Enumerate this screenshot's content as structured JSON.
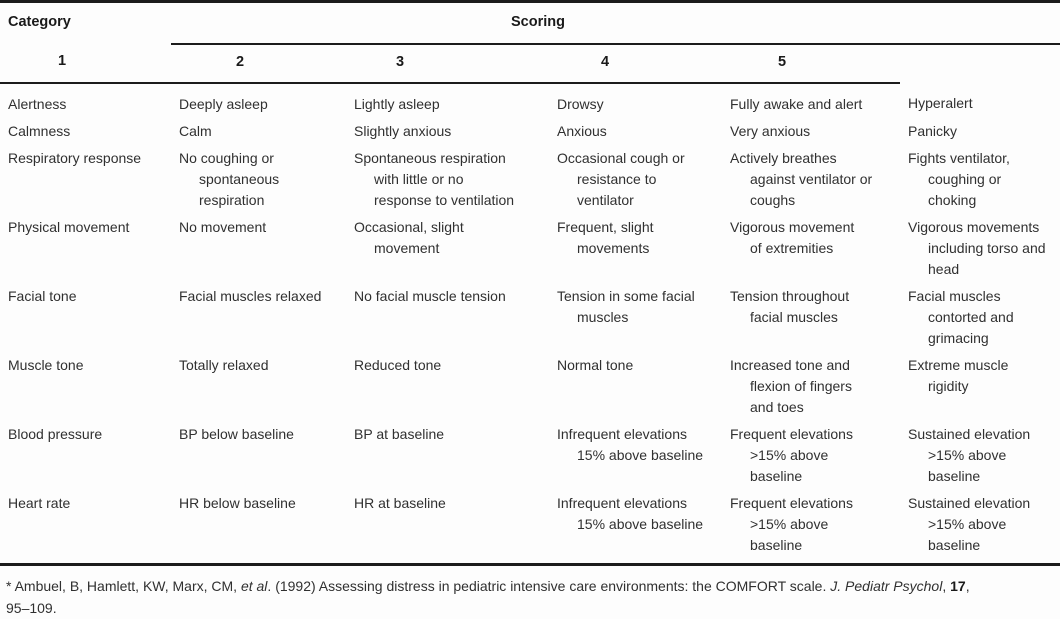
{
  "table": {
    "category_header": "Category",
    "scoring_header": "Scoring",
    "score_levels": [
      "1",
      "2",
      "3",
      "4",
      "5"
    ],
    "rows": [
      {
        "category": "Alertness",
        "scores": [
          "Deeply asleep",
          "Lightly asleep",
          "Drowsy",
          "Fully awake and alert",
          "Hyperalert"
        ]
      },
      {
        "category": "Calmness",
        "scores": [
          "Calm",
          "Slightly anxious",
          "Anxious",
          "Very anxious",
          "Panicky"
        ]
      },
      {
        "category": "Respiratory response",
        "scores": [
          "No coughing or\nspontaneous\nrespiration",
          "Spontaneous respiration\nwith little or no\nresponse to ventilation",
          "Occasional cough or\nresistance to\nventilator",
          "Actively breathes\nagainst ventilator or\ncoughs",
          "Fights ventilator,\ncoughing or\nchoking"
        ]
      },
      {
        "category": "Physical movement",
        "scores": [
          "No movement",
          "Occasional, slight\nmovement",
          "Frequent, slight\nmovements",
          "Vigorous movement\nof extremities",
          "Vigorous movements\nincluding torso and\nhead"
        ]
      },
      {
        "category": "Facial tone",
        "scores": [
          "Facial muscles relaxed",
          "No facial muscle tension",
          "Tension in some facial\nmuscles",
          "Tension throughout\nfacial muscles",
          "Facial muscles\ncontorted and\ngrimacing"
        ]
      },
      {
        "category": "Muscle tone",
        "scores": [
          "Totally relaxed",
          "Reduced tone",
          "Normal tone",
          "Increased tone and\nflexion of fingers\nand toes",
          "Extreme muscle\nrigidity"
        ]
      },
      {
        "category": "Blood pressure",
        "scores": [
          "BP below baseline",
          "BP at baseline",
          "Infrequent elevations\n15% above baseline",
          "Frequent elevations\n>15% above\nbaseline",
          "Sustained elevation\n>15% above\nbaseline"
        ]
      },
      {
        "category": "Heart rate",
        "scores": [
          "HR below baseline",
          "HR at baseline",
          "Infrequent elevations\n15% above baseline",
          "Frequent elevations\n>15% above\nbaseline",
          "Sustained elevation\n>15% above\nbaseline"
        ]
      }
    ]
  },
  "footnote": {
    "authors": "* Ambuel, B, Hamlett, KW, Marx, CM, ",
    "et_al": "et al",
    "title": ". (1992) Assessing distress in pediatric intensive care environments: the COMFORT scale. ",
    "journal": "J. Pediatr Psychol",
    "sep1": ", ",
    "volume": "17",
    "sep2": ",",
    "pages": "95–109."
  },
  "colors": {
    "rule": "#1c1c1c",
    "text": "#303030",
    "heading_text": "#1a1a1a",
    "background": "#fdfdfd"
  }
}
